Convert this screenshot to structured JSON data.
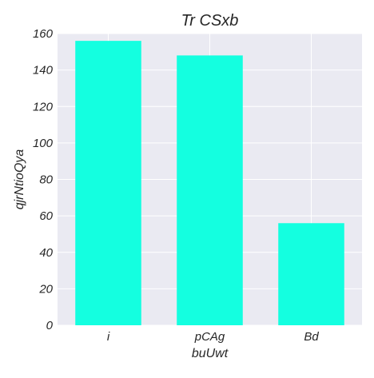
{
  "chart_data": {
    "type": "bar",
    "title": "Tr CSxb",
    "xlabel": "buUwt",
    "ylabel": "qjrNtioQya",
    "categories": [
      "i",
      "pCAg",
      "Bd"
    ],
    "values": [
      156,
      148,
      56
    ],
    "ylim": [
      0,
      160
    ],
    "yticks": [
      0,
      20,
      40,
      60,
      80,
      100,
      120,
      140,
      160
    ],
    "ytick_labels": [
      "0",
      "20",
      "40",
      "60",
      "80",
      "100",
      "120",
      "140",
      "160"
    ],
    "grid": true,
    "legend": "none",
    "colors": {
      "bar": "#14ffe0",
      "plot_background": "#eaeaf2",
      "grid": "#ffffff",
      "text": "#262626"
    }
  }
}
